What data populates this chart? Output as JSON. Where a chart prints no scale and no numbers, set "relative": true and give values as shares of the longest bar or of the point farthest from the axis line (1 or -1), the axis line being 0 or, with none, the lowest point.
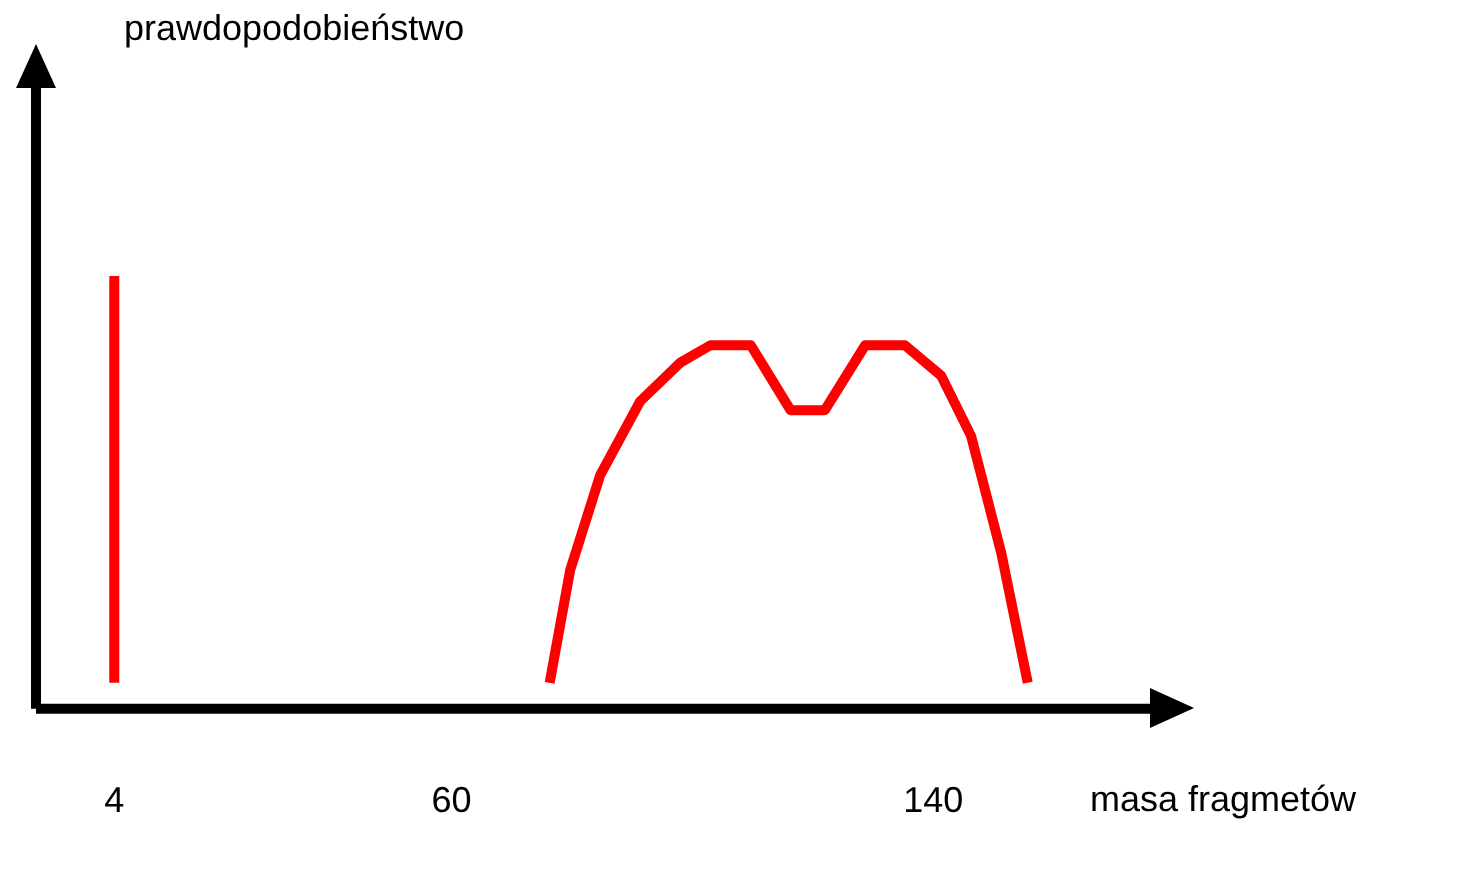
{
  "chart_data": {
    "type": "line",
    "relative": true,
    "xlabel": "masa fragmetów",
    "annotations": [
      "prawdopodobieństwo"
    ],
    "xlim": [
      -9,
      176
    ],
    "xticks": [
      4,
      60,
      140
    ],
    "grid": false,
    "legend": false,
    "marker": "none",
    "series": [
      {
        "color": "#ff0000",
        "x": [
          4,
          4
        ],
        "values": [
          0.06,
          1
        ]
      },
      {
        "color": "#ff0000",
        "x": [
          76.3,
          79.7,
          84.7,
          91.3,
          98,
          103,
          109.7,
          116.3,
          122,
          128.7,
          135.3,
          141.3,
          146.3,
          151.3,
          155.7
        ],
        "values": [
          0.06,
          0.32,
          0.54,
          0.71,
          0.8,
          0.84,
          0.84,
          0.69,
          0.69,
          0.84,
          0.84,
          0.77,
          0.63,
          0.36,
          0.06
        ]
      }
    ]
  }
}
